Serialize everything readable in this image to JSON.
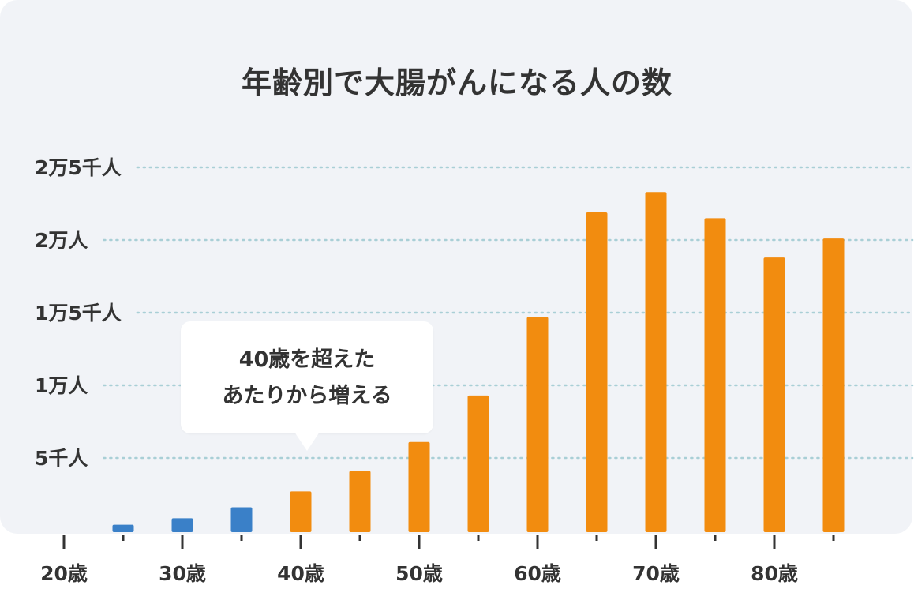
{
  "chart_data": {
    "type": "bar",
    "title": "年齢別で大腸がんになる人の数",
    "y_ticks": [
      {
        "value": 5000,
        "label": "5千人"
      },
      {
        "value": 10000,
        "label": "1万人"
      },
      {
        "value": 15000,
        "label": "1万5千人"
      },
      {
        "value": 20000,
        "label": "2万人"
      },
      {
        "value": 25000,
        "label": "2万5千人"
      }
    ],
    "x_ticks": [
      {
        "age": 20,
        "label": "20歳"
      },
      {
        "age": 30,
        "label": "30歳"
      },
      {
        "age": 40,
        "label": "40歳"
      },
      {
        "age": 50,
        "label": "50歳"
      },
      {
        "age": 60,
        "label": "60歳"
      },
      {
        "age": 70,
        "label": "70歳"
      },
      {
        "age": 80,
        "label": "80歳"
      }
    ],
    "xlim": [
      20,
      86
    ],
    "ylim": [
      0,
      25000
    ],
    "grid": true,
    "bars": [
      {
        "age": 25,
        "value": 400,
        "color": "#3a80c8"
      },
      {
        "age": 30,
        "value": 850,
        "color": "#3a80c8"
      },
      {
        "age": 35,
        "value": 1600,
        "color": "#3a80c8"
      },
      {
        "age": 40,
        "value": 2700,
        "color": "#f28c0f"
      },
      {
        "age": 45,
        "value": 4100,
        "color": "#f28c0f"
      },
      {
        "age": 50,
        "value": 6100,
        "color": "#f28c0f"
      },
      {
        "age": 55,
        "value": 9300,
        "color": "#f28c0f"
      },
      {
        "age": 60,
        "value": 14700,
        "color": "#f28c0f"
      },
      {
        "age": 65,
        "value": 21900,
        "color": "#f28c0f"
      },
      {
        "age": 70,
        "value": 23300,
        "color": "#f28c0f"
      },
      {
        "age": 75,
        "value": 21500,
        "color": "#f28c0f"
      },
      {
        "age": 80,
        "value": 18800,
        "color": "#f28c0f"
      },
      {
        "age": 85,
        "value": 20100,
        "color": "#f28c0f"
      }
    ],
    "colors": {
      "under_40": "#3a80c8",
      "over_40": "#f28c0f",
      "grid": "#a9cfd6",
      "text": "#333333",
      "background": "#f1f3f7"
    }
  },
  "callout": {
    "line1": "40歳を超えた",
    "line2": "あたりから増える"
  }
}
